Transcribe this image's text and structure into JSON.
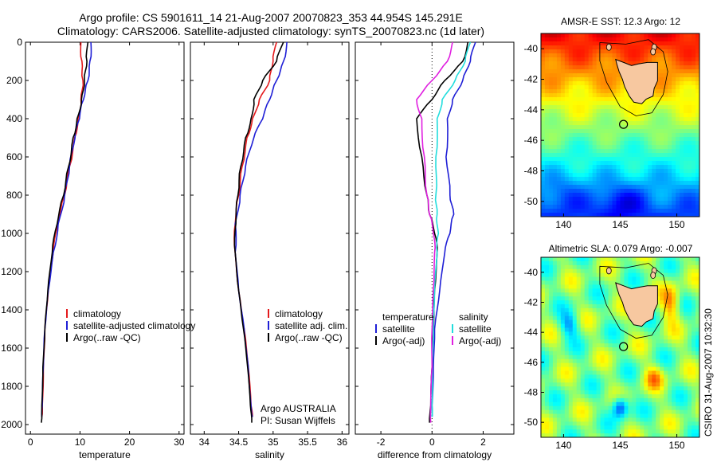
{
  "title": {
    "line1": "Argo profile: CS 5901611_14 21-Aug-2007 20070823_353 44.954S 145.291E",
    "line2": "Climatology: CARS2006. Satellite-adjusted climatology: synTS_20070823.nc (1d later)"
  },
  "side_text": "CSIRO 31-Aug-2007 10:32:30",
  "colors": {
    "climatology": "#e41a1c",
    "satellite": "#1f1fd6",
    "argo": "#000000",
    "satellite_salinity": "#22dddd",
    "argo_salinity_diff": "#e020e0",
    "land": "#f7c8a0"
  },
  "chart_data": [
    {
      "type": "line",
      "xlabel": "temperature",
      "ylabel": "",
      "xlim": [
        -1,
        31
      ],
      "ylim": [
        2050,
        0
      ],
      "xticks": [
        "0",
        "10",
        "20",
        "30"
      ],
      "yticks": [
        "0",
        "200",
        "400",
        "600",
        "800",
        "1000",
        "1200",
        "1400",
        "1600",
        "1800",
        "2000"
      ],
      "legend": [
        "climatology",
        "satellite-adjusted climatology",
        "Argo(..raw -QC)"
      ],
      "legend_position": "lower-right",
      "series": [
        {
          "name": "climatology",
          "color_key": "climatology",
          "x": [
            10.2,
            10.4,
            10.6,
            10.2,
            9.6,
            8.9,
            7.9,
            6.9,
            5.6,
            4.6,
            3.6,
            2.9,
            2.6,
            2.4,
            2.3
          ],
          "y": [
            0,
            100,
            200,
            300,
            400,
            500,
            650,
            800,
            950,
            1100,
            1300,
            1500,
            1700,
            1900,
            1960
          ]
        },
        {
          "name": "satellite-adjusted climatology",
          "color_key": "satellite",
          "x": [
            12.2,
            12.0,
            11.6,
            10.7,
            9.9,
            9.0,
            7.9,
            6.9,
            5.6,
            4.6,
            3.6,
            2.9,
            2.6,
            2.4,
            2.3
          ],
          "y": [
            0,
            100,
            200,
            300,
            400,
            500,
            650,
            800,
            950,
            1100,
            1300,
            1500,
            1700,
            1900,
            1960
          ]
        },
        {
          "name": "Argo(..raw -QC)",
          "color_key": "argo",
          "x": [
            11.6,
            11.4,
            10.9,
            10.3,
            9.4,
            8.6,
            7.7,
            6.7,
            5.4,
            4.4,
            3.5,
            2.9,
            2.5,
            2.3,
            2.2
          ],
          "y": [
            0,
            100,
            200,
            300,
            400,
            500,
            650,
            800,
            950,
            1100,
            1300,
            1500,
            1700,
            1900,
            1990
          ]
        }
      ]
    },
    {
      "type": "line",
      "xlabel": "salinity",
      "ylabel": "",
      "xlim": [
        33.8,
        36.1
      ],
      "ylim": [
        2050,
        0
      ],
      "xticks": [
        "34",
        "34.5",
        "35",
        "35.5",
        "36"
      ],
      "yticks": [],
      "legend": [
        "climatology",
        "satellite adj. clim.",
        "Argo(..raw -QC)"
      ],
      "legend_position": "lower-right",
      "annotation": [
        "Argo AUSTRALIA",
        "PI: Susan Wijffels"
      ],
      "series": [
        {
          "name": "climatology",
          "color_key": "climatology",
          "x": [
            35.05,
            35.0,
            34.95,
            34.8,
            34.7,
            34.62,
            34.55,
            34.5,
            34.45,
            34.45,
            34.5,
            34.58,
            34.64,
            34.68,
            34.7
          ],
          "y": [
            0,
            100,
            200,
            300,
            400,
            500,
            650,
            800,
            950,
            1100,
            1300,
            1500,
            1700,
            1900,
            1960
          ]
        },
        {
          "name": "satellite adj. clim.",
          "color_key": "satellite",
          "x": [
            35.2,
            35.15,
            35.05,
            34.95,
            34.85,
            34.72,
            34.6,
            34.52,
            34.45,
            34.45,
            34.5,
            34.58,
            34.64,
            34.68,
            34.7
          ],
          "y": [
            0,
            100,
            200,
            300,
            400,
            500,
            650,
            800,
            950,
            1100,
            1300,
            1500,
            1700,
            1900,
            1960
          ]
        },
        {
          "name": "Argo(..raw -QC)",
          "color_key": "argo",
          "x": [
            35.15,
            35.05,
            34.85,
            34.72,
            34.68,
            34.6,
            34.53,
            34.49,
            34.46,
            34.45,
            34.5,
            34.57,
            34.63,
            34.67,
            34.69
          ],
          "y": [
            0,
            100,
            200,
            300,
            400,
            500,
            650,
            800,
            950,
            1100,
            1300,
            1500,
            1700,
            1900,
            1990
          ]
        }
      ]
    },
    {
      "type": "line",
      "xlabel": "difference from climatology",
      "ylabel": "",
      "xlim": [
        -3,
        3.2
      ],
      "ylim": [
        2050,
        0
      ],
      "xticks": [
        "-2",
        "0",
        "2"
      ],
      "yticks": [],
      "zero_line": true,
      "legend_groups": [
        {
          "title": "temperature",
          "items": [
            "satellite",
            "Argo(-adj)"
          ]
        },
        {
          "title": "salinity",
          "items": [
            "satellite",
            "Argo(-adj)"
          ]
        }
      ],
      "legend_position": "lower-right",
      "series": [
        {
          "name": "satellite",
          "group": "temperature",
          "color_key": "satellite",
          "x": [
            1.7,
            1.5,
            1.2,
            0.8,
            0.6,
            0.55,
            0.7,
            0.85,
            0.7,
            0.5,
            0.3,
            0.1,
            0.05,
            0.0,
            0.0
          ],
          "y": [
            0,
            100,
            200,
            300,
            400,
            600,
            800,
            900,
            1000,
            1100,
            1300,
            1500,
            1700,
            1900,
            1960
          ]
        },
        {
          "name": "Argo(-adj)",
          "group": "temperature",
          "color_key": "argo",
          "x": [
            1.4,
            1.2,
            0.5,
            0.0,
            -0.6,
            -0.4,
            -0.2,
            -0.1,
            0.1,
            0.2,
            0.1,
            0.05,
            0.0,
            -0.05,
            -0.1
          ],
          "y": [
            0,
            100,
            200,
            300,
            400,
            600,
            800,
            900,
            1000,
            1100,
            1300,
            1500,
            1700,
            1900,
            1990
          ]
        },
        {
          "name": "satellite",
          "group": "salinity",
          "color_key": "satellite_salinity",
          "x": [
            1.5,
            1.3,
            0.9,
            0.4,
            0.2,
            0.15,
            0.15,
            0.2,
            0.25,
            0.2,
            0.1,
            0.05,
            0.0,
            0.0,
            0.0
          ],
          "y": [
            0,
            100,
            200,
            300,
            400,
            600,
            800,
            900,
            1000,
            1100,
            1300,
            1500,
            1700,
            1900,
            1960
          ]
        },
        {
          "name": "Argo(-adj)",
          "group": "salinity",
          "color_key": "argo_salinity_diff",
          "x": [
            0.8,
            0.6,
            0.0,
            -0.6,
            -0.4,
            -0.3,
            -0.2,
            -0.1,
            0.05,
            0.1,
            0.05,
            0.0,
            0.0,
            -0.05,
            -0.05
          ],
          "y": [
            0,
            100,
            200,
            300,
            400,
            600,
            800,
            900,
            1000,
            1100,
            1300,
            1500,
            1700,
            1900,
            1990
          ]
        }
      ]
    },
    {
      "type": "heatmap",
      "title": "AMSR-E SST: 12.3  Argo: 12",
      "xlim": [
        138,
        152
      ],
      "ylim": [
        -51,
        -39
      ],
      "xticks": [
        "140",
        "145",
        "150"
      ],
      "yticks": [
        "-40",
        "-42",
        "-44",
        "-46",
        "-48",
        "-50"
      ],
      "colormap": "jet",
      "marker": {
        "lon": 145.291,
        "lat": -44.954,
        "shape": "circle"
      }
    },
    {
      "type": "heatmap",
      "title": "Altimetric SLA: 0.079  Argo: -0.007",
      "xlim": [
        138,
        152
      ],
      "ylim": [
        -51,
        -39
      ],
      "xticks": [
        "140",
        "145",
        "150"
      ],
      "yticks": [
        "-40",
        "-42",
        "-44",
        "-46",
        "-48",
        "-50"
      ],
      "colormap": "jet",
      "marker": {
        "lon": 145.291,
        "lat": -44.954,
        "shape": "circle"
      }
    }
  ]
}
